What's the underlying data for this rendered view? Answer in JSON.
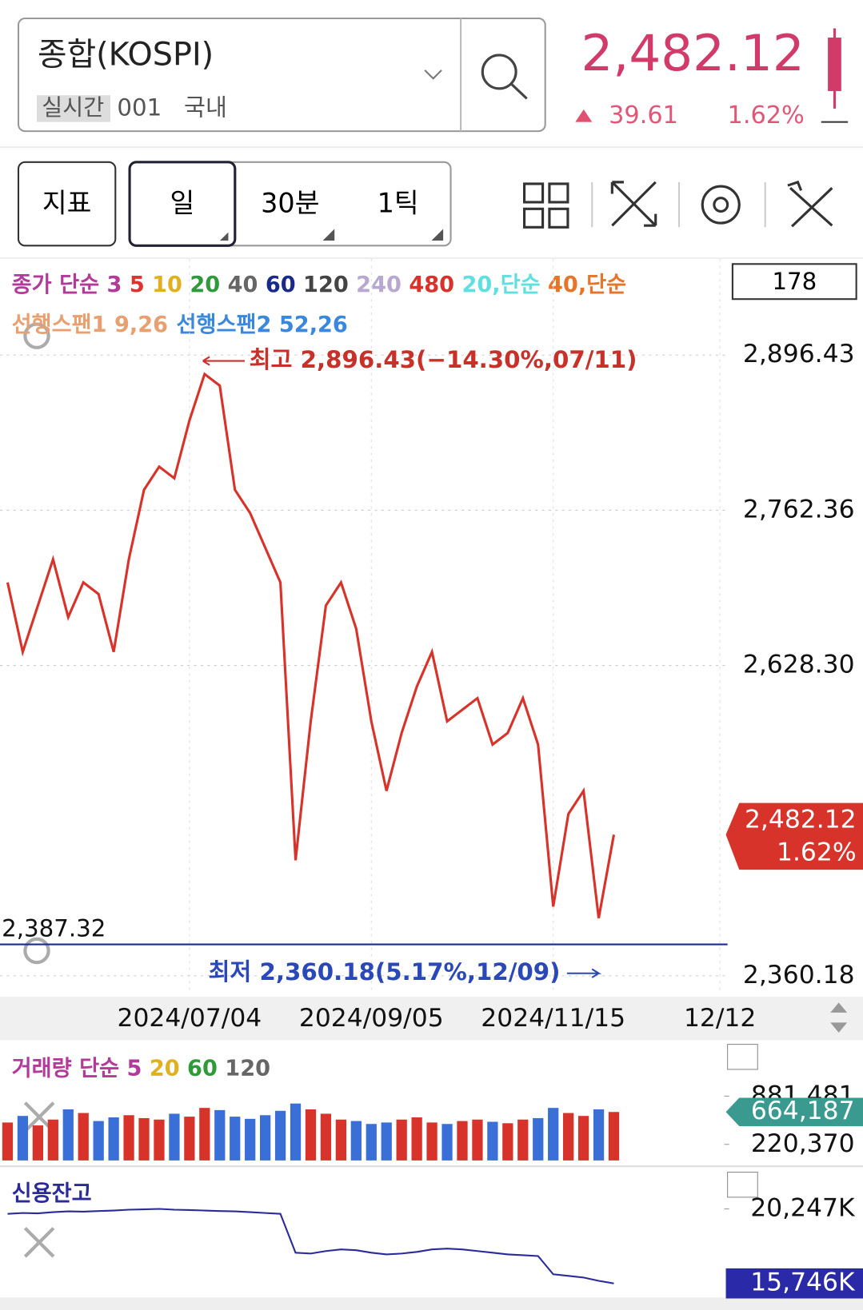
{
  "header": {
    "title": "종합(KOSPI)",
    "tag": "실시간",
    "code": "001",
    "market": "국내",
    "price": "2,482.12",
    "change": "39.61",
    "change_pct": "1.62%"
  },
  "toolbar": {
    "buttons": [
      "지표",
      "일",
      "30분",
      "1틱"
    ]
  },
  "chart_data": [
    {
      "type": "line",
      "count": "178",
      "legend": [
        {
          "label": "종가 단순",
          "color": "#b23a9a"
        },
        {
          "label": "3",
          "color": "#b23a9a"
        },
        {
          "label": "5",
          "color": "#e0322e"
        },
        {
          "label": "10",
          "color": "#e0b020"
        },
        {
          "label": "20",
          "color": "#2e9a3a"
        },
        {
          "label": "40",
          "color": "#666666"
        },
        {
          "label": "60",
          "color": "#1a2a8a"
        },
        {
          "label": "120",
          "color": "#444444"
        },
        {
          "label": "240",
          "color": "#b8a8d0"
        },
        {
          "label": "480",
          "color": "#d8332a"
        },
        {
          "label": "20,단순",
          "color": "#5fe0e0"
        },
        {
          "label": "40,단순",
          "color": "#e8742a"
        }
      ],
      "legend2": [
        {
          "label": "선행스팬1 9,26",
          "color": "#e8a070"
        },
        {
          "label": "선행스팬2 52,26",
          "color": "#3a88dd"
        }
      ],
      "annotations": {
        "high": "최고 2,896.43(−14.30%,07/11)",
        "low": "최저 2,360.18(5.17%,12/09)"
      },
      "ref_line": {
        "value": 2387.32,
        "label": "2,387.32"
      },
      "price_tag": [
        "2,482.12",
        "1.62%"
      ],
      "categories": [
        null,
        null,
        null,
        null,
        null,
        null,
        null,
        null,
        null,
        null,
        null,
        null,
        "2024/07/04",
        null,
        null,
        null,
        null,
        null,
        null,
        null,
        null,
        null,
        null,
        null,
        "2024/09/05",
        null,
        null,
        null,
        null,
        null,
        null,
        null,
        null,
        null,
        null,
        null,
        "2024/11/15",
        null,
        null,
        null,
        null,
        null,
        null,
        null,
        null,
        null,
        null,
        "12/12"
      ],
      "series": [
        {
          "name": "종가",
          "color": "#d8332a",
          "values": [
            2700,
            2640,
            2680,
            2720,
            2670,
            2700,
            2690,
            2640,
            2720,
            2780,
            2800,
            2790,
            2840,
            2880,
            2870,
            2780,
            2760,
            2730,
            2700,
            2460,
            2580,
            2680,
            2700,
            2660,
            2580,
            2520,
            2570,
            2610,
            2640,
            2580,
            2590,
            2600,
            2560,
            2570,
            2600,
            2560,
            2420,
            2500,
            2520,
            2410,
            2482.12,
            null,
            null,
            null,
            null,
            null,
            null,
            null
          ]
        }
      ],
      "ylim": [
        2360.18,
        2896.43
      ],
      "yticks": [
        {
          "value": 2896.43,
          "label": "2,896.43"
        },
        {
          "value": 2762.36,
          "label": "2,762.36"
        },
        {
          "value": 2628.3,
          "label": "2,628.30"
        },
        {
          "value": 2360.18,
          "label": "2,360.18"
        }
      ],
      "grid": true
    },
    {
      "type": "bar",
      "legend": [
        {
          "label": "거래량 단순",
          "color": "#b23a9a"
        },
        {
          "label": "5",
          "color": "#b23a9a"
        },
        {
          "label": "20",
          "color": "#e0b020"
        },
        {
          "label": "60",
          "color": "#2e9a3a"
        },
        {
          "label": "120",
          "color": "#666666"
        }
      ],
      "price_tag": "664,187",
      "colors": [
        "#d8332a",
        "#3a6fd8"
      ],
      "values": [
        520000,
        610000,
        480000,
        560000,
        700000,
        650000,
        540000,
        590000,
        620000,
        580000,
        560000,
        640000,
        600000,
        720000,
        690000,
        600000,
        570000,
        620000,
        680000,
        780000,
        700000,
        640000,
        560000,
        540000,
        500000,
        520000,
        560000,
        590000,
        520000,
        500000,
        540000,
        560000,
        530000,
        510000,
        560000,
        580000,
        720000,
        650000,
        610000,
        700000,
        664187
      ],
      "ylim": [
        0,
        950000
      ],
      "yticks": [
        {
          "value": 881481,
          "label": "881,481"
        },
        {
          "value": 220370,
          "label": "220,370"
        }
      ]
    },
    {
      "type": "line",
      "title": "신용잔고",
      "price_tag": "15,746K",
      "color": "#2a2a9a",
      "values": [
        19950,
        20000,
        19980,
        20050,
        20100,
        20080,
        20120,
        20150,
        20200,
        20220,
        20247,
        20200,
        20180,
        20150,
        20120,
        20100,
        20050,
        20000,
        19950,
        17600,
        17550,
        17700,
        17800,
        17750,
        17600,
        17500,
        17550,
        17650,
        17800,
        17850,
        17800,
        17700,
        17600,
        17500,
        17450,
        17400,
        16300,
        16200,
        16100,
        15900,
        15746
      ],
      "ylim": [
        15300,
        20600
      ],
      "yticks": [
        {
          "value": 20247,
          "label": "20,247K"
        }
      ]
    }
  ]
}
